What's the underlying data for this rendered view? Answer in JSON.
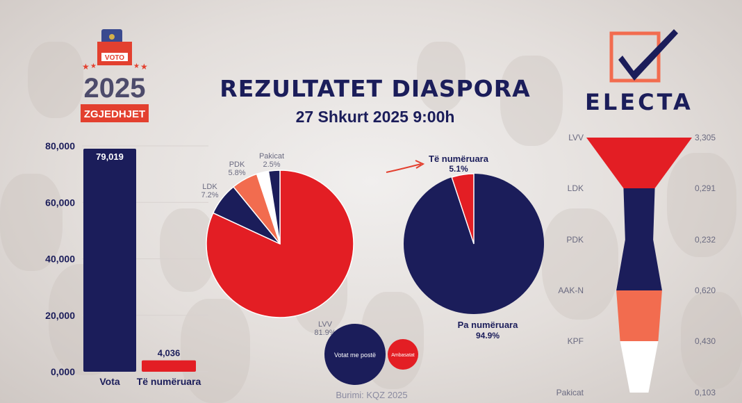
{
  "header": {
    "title": "REZULTATET DIASPORA",
    "subtitle": "27 Shkurt 2025 9:00h",
    "source": "Burimi: KQZ 2025"
  },
  "logo_left": {
    "voto": "VOTO",
    "year": "2025",
    "banner": "ZGJEDHJET"
  },
  "logo_right": {
    "name": "ELECTA"
  },
  "colors": {
    "navy": "#1b1d5a",
    "red": "#e31e24",
    "orange": "#f26c4f",
    "white": "#ffffff",
    "grey": "#8f8aa4"
  },
  "chart_data": [
    {
      "type": "bar",
      "categories": [
        "Vota",
        "Të numëruara"
      ],
      "values": [
        79019,
        4036
      ],
      "value_labels": [
        "79,019",
        "4,036"
      ],
      "colors": [
        "#1b1d5a",
        "#e31e24"
      ],
      "ylim": [
        0,
        80000
      ],
      "yticks": [
        "0,000",
        "20,000",
        "40,000",
        "60,000",
        "80,000"
      ],
      "ytick_values": [
        0,
        20000,
        40000,
        60000,
        80000
      ]
    },
    {
      "type": "pie",
      "labels": [
        "LVV",
        "LDK",
        "PDK",
        "Pakicat"
      ],
      "values": [
        81.9,
        7.2,
        5.8,
        2.5
      ],
      "value_labels": [
        "81.9%",
        "7.2%",
        "5.8%",
        "2.5%"
      ],
      "colors": [
        "#e31e24",
        "#1b1d5a",
        "#f26c4f",
        "#1b1d5a"
      ],
      "other_slice": {
        "value": 2.6,
        "color": "#ffffff"
      }
    },
    {
      "type": "pie",
      "labels": [
        "Të numëruara",
        "Pa numëruara"
      ],
      "values": [
        5.1,
        94.9
      ],
      "value_labels": [
        "5.1%",
        "94.9%"
      ],
      "colors": [
        "#e31e24",
        "#1b1d5a"
      ]
    },
    {
      "type": "bubble",
      "labels": [
        "Votat me postë",
        "Ambasatat"
      ],
      "colors": [
        "#1b1d5a",
        "#e31e24"
      ]
    },
    {
      "type": "funnel",
      "categories": [
        "LVV",
        "LDK",
        "PDK",
        "AAK-N",
        "KPF",
        "Pakicat"
      ],
      "values": [
        3.305,
        0.291,
        0.232,
        0.62,
        0.43,
        0.103
      ],
      "value_labels": [
        "3,305",
        "0,291",
        "0,232",
        "0,620",
        "0,430",
        "0,103"
      ],
      "colors": [
        "#e31e24",
        "#1b1d5a",
        "#1b1d5a",
        "#f26c4f",
        "#ffffff",
        "#1b1d5a"
      ]
    }
  ]
}
